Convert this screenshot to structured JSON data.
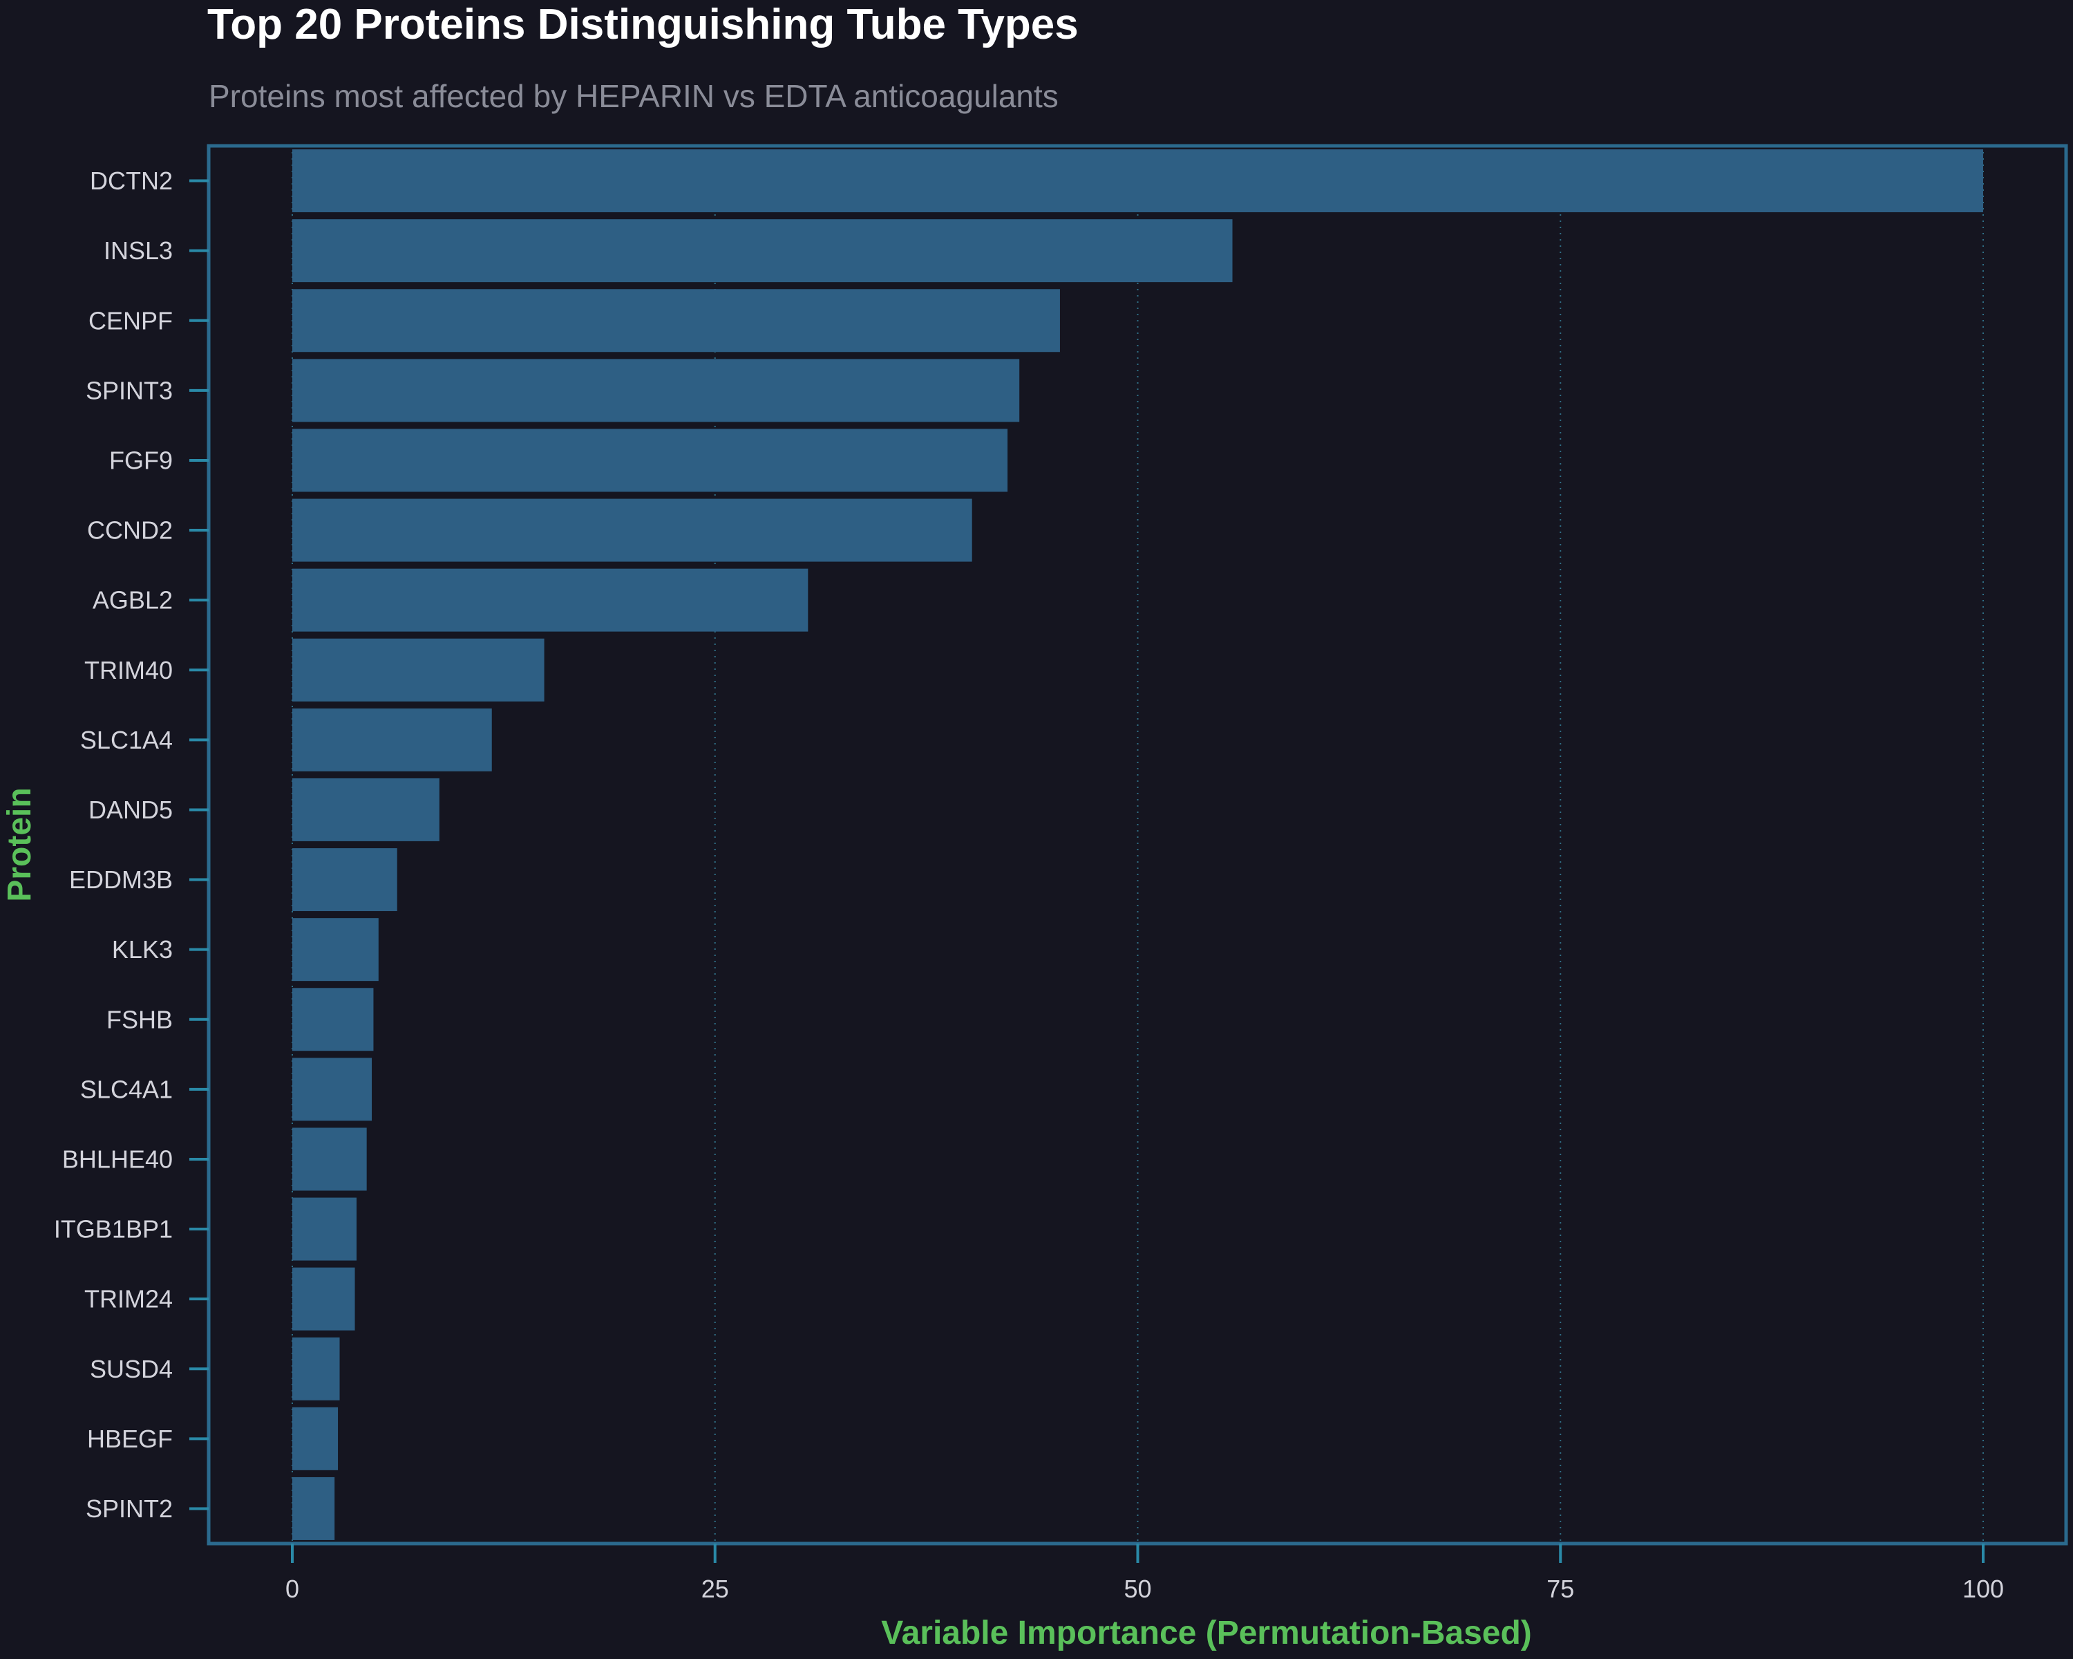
{
  "colors": {
    "background": "#151520",
    "bar": "#2e5f84",
    "panel_border": "#2b6a8e",
    "grid": "#2f6f86",
    "tick": "#2a8aa8",
    "axis_title": "#5ac05a",
    "title": "#ffffff",
    "subtitle": "#8a8c98",
    "tick_label": "#d4d4dc"
  },
  "chart_data": {
    "type": "bar",
    "orientation": "horizontal",
    "title": "Top 20 Proteins Distinguishing Tube Types",
    "subtitle": "Proteins most affected by HEPARIN vs EDTA anticoagulants",
    "xlabel": "Variable Importance (Permutation-Based)",
    "ylabel": "Protein",
    "xlim": [
      -5,
      105
    ],
    "xticks": [
      0,
      25,
      50,
      75,
      100
    ],
    "grid": "vertical dotted",
    "categories": [
      "DCTN2",
      "INSL3",
      "CENPF",
      "SPINT3",
      "FGF9",
      "CCND2",
      "AGBL2",
      "TRIM40",
      "SLC1A4",
      "DAND5",
      "EDDM3B",
      "KLK3",
      "FSHB",
      "SLC4A1",
      "BHLHE40",
      "ITGB1BP1",
      "TRIM24",
      "SUSD4",
      "HBEGF",
      "SPINT2"
    ],
    "values": [
      100,
      55.6,
      45.4,
      43.0,
      42.3,
      40.2,
      30.5,
      14.9,
      11.8,
      8.7,
      6.2,
      5.1,
      4.8,
      4.7,
      4.4,
      3.8,
      3.7,
      2.8,
      2.7,
      2.5
    ]
  }
}
